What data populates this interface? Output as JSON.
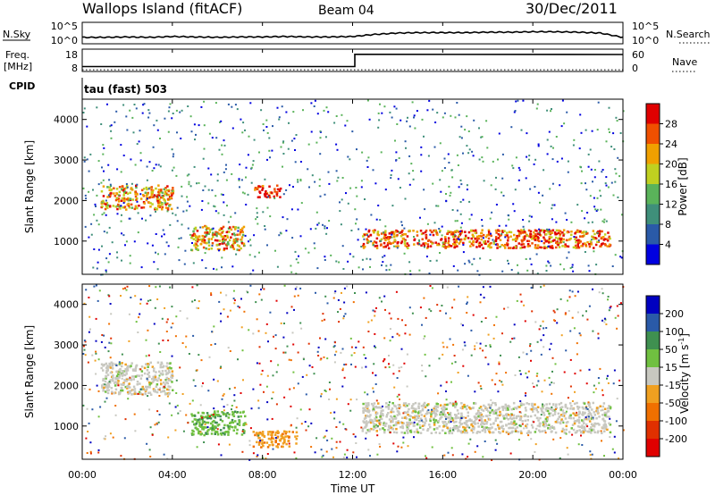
{
  "header": {
    "station": "Wallops Island (fitACF)",
    "beam": "Beam 04",
    "date": "30/Dec/2011"
  },
  "noise_panel": {
    "left_label": "N.Sky",
    "right_label": "N.Search",
    "left_ticks": [
      "10^5",
      "10^0"
    ],
    "right_ticks": [
      "10^5",
      "10^0"
    ]
  },
  "freq_panel": {
    "left_label_1": "Freq.",
    "left_label_2": "[MHz]",
    "right_label": "Nave",
    "left_ticks": [
      "18",
      "8"
    ],
    "right_ticks": [
      "60",
      "0"
    ]
  },
  "cpid_label": "CPID",
  "cpid_value": "tau (fast) 503",
  "x_axis": {
    "label": "Time UT",
    "ticks": [
      "00:00",
      "04:00",
      "08:00",
      "12:00",
      "16:00",
      "20:00",
      "00:00"
    ]
  },
  "chart_data": [
    {
      "type": "line",
      "title": "N.Sky / N.Search",
      "x_label": "Time UT",
      "x_range_hours": [
        0,
        24
      ],
      "scale": "log",
      "y_range": [
        "10^0",
        "10^5"
      ],
      "series": [
        {
          "name": "N.Sky",
          "x": [
            0,
            1,
            2,
            3,
            4,
            5,
            6,
            7,
            8,
            9,
            10,
            11,
            12,
            13,
            14,
            15,
            16,
            17,
            18,
            19,
            20,
            21,
            22,
            23,
            24
          ],
          "y_log10": [
            1.5,
            1.5,
            1.6,
            1.5,
            1.7,
            1.6,
            1.5,
            1.6,
            1.6,
            1.7,
            1.6,
            1.6,
            1.7,
            2.2,
            2.5,
            2.6,
            2.6,
            2.6,
            2.7,
            2.7,
            2.8,
            2.8,
            2.7,
            2.5,
            1.5
          ]
        }
      ]
    },
    {
      "type": "line",
      "title": "Freq. / Nave",
      "x_label": "Time UT",
      "x_range_hours": [
        0,
        24
      ],
      "series": [
        {
          "name": "Freq.",
          "unit": "MHz",
          "y_range": [
            8,
            18
          ],
          "x": [
            0,
            12.1,
            12.1,
            24
          ],
          "y": [
            10.2,
            10.2,
            15.7,
            15.6
          ]
        },
        {
          "name": "Nave",
          "y_range": [
            0,
            60
          ],
          "x": [
            0,
            24
          ],
          "y": [
            2,
            2
          ]
        }
      ]
    },
    {
      "type": "heatmap",
      "title": "Power",
      "x_label": "Time UT",
      "y_label": "Slant Range [km]",
      "x_range_hours": [
        0,
        24
      ],
      "y_range_km": [
        180,
        4500
      ],
      "y_ticks": [
        1000,
        2000,
        3000,
        4000
      ],
      "colorbar_label": "Power [dB]",
      "colorbar_ticks": [
        "4",
        "8",
        "12",
        "16",
        "20",
        "24",
        "28"
      ],
      "colors": [
        "#0000e0",
        "#2a5aa8",
        "#3f8f7a",
        "#5ab35a",
        "#c0d020",
        "#f0a000",
        "#f05000",
        "#e00000"
      ],
      "features": [
        {
          "name": "morning band",
          "t_start": 0.8,
          "t_end": 4.0,
          "range_km": [
            1800,
            2400
          ],
          "dB": 22
        },
        {
          "name": "midday patch",
          "t_start": 4.8,
          "t_end": 7.2,
          "range_km": [
            800,
            1400
          ],
          "dB": 20
        },
        {
          "name": "bright spot",
          "t_start": 7.6,
          "t_end": 8.8,
          "range_km": [
            2100,
            2400
          ],
          "dB": 28
        },
        {
          "name": "evening main band",
          "t_start": 12.4,
          "t_end": 23.4,
          "range_km": [
            850,
            1300
          ],
          "dB": 26
        }
      ]
    },
    {
      "type": "heatmap",
      "title": "Velocity",
      "x_label": "Time UT",
      "y_label": "Slant Range [km]",
      "x_range_hours": [
        0,
        24
      ],
      "y_range_km": [
        180,
        4500
      ],
      "y_ticks": [
        1000,
        2000,
        3000,
        4000
      ],
      "colorbar_label": "Velocity [m s",
      "colorbar_sup": "-1",
      "colorbar_close": "]",
      "colorbar_ticks": [
        "200",
        "100",
        "50",
        "15",
        "-15",
        "-50",
        "-100",
        "-200"
      ],
      "colors": [
        "#0000c0",
        "#2a5aa8",
        "#3f9050",
        "#70c040",
        "#c8c8c0",
        "#f0a020",
        "#f07000",
        "#e03000",
        "#e00000"
      ],
      "features": [
        {
          "name": "low-velocity band",
          "t_start": 0.8,
          "t_end": 4.0,
          "range_km": [
            1800,
            2600
          ],
          "vel_ms": 0
        },
        {
          "name": "positive patch",
          "t_start": 4.8,
          "t_end": 7.2,
          "range_km": [
            800,
            1400
          ],
          "vel_ms": 30
        },
        {
          "name": "negative streak",
          "t_start": 7.5,
          "t_end": 9.5,
          "range_km": [
            500,
            900
          ],
          "vel_ms": -40
        },
        {
          "name": "evening band",
          "t_start": 12.4,
          "t_end": 23.4,
          "range_km": [
            850,
            1600
          ],
          "vel_ms": 0
        }
      ]
    }
  ],
  "colors": {
    "axes": "#000000",
    "background": "#ffffff"
  }
}
